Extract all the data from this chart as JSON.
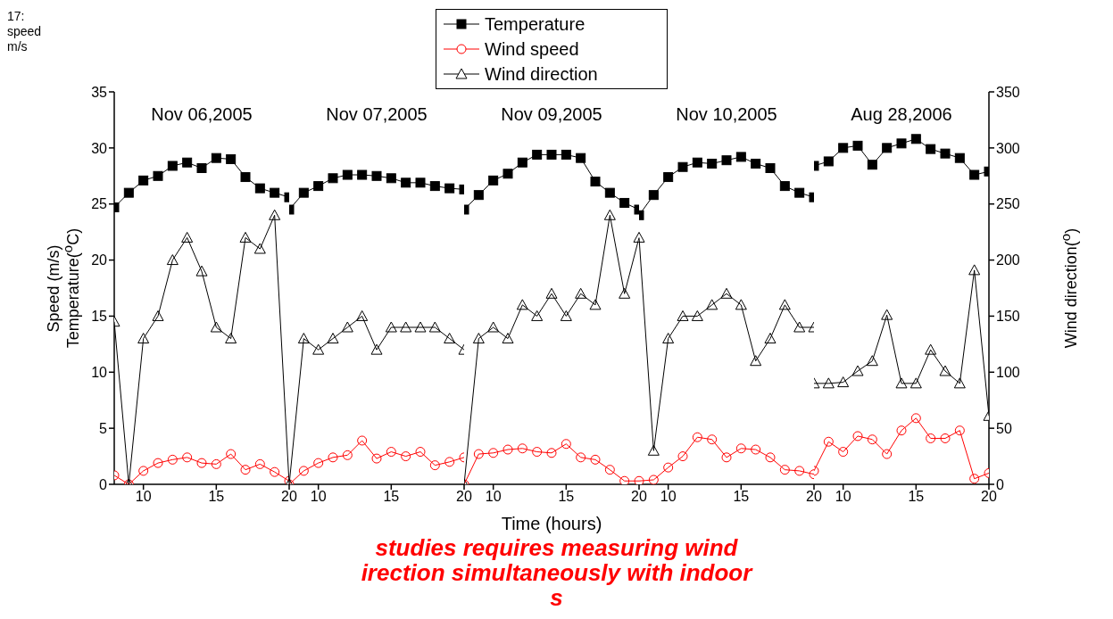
{
  "chart_data": [
    {
      "type": "other",
      "annotations": [
        "17:",
        "speed",
        "m/s"
      ]
    },
    {
      "type": "line",
      "title": "Nov 06,2005",
      "ylabel": "Temperature($^{o}$C)",
      "annotations": [
        "Speed (m/s)"
      ],
      "x": [
        8,
        9,
        10,
        11,
        12,
        13,
        14,
        15,
        16,
        17,
        18,
        19,
        20
      ],
      "xlim": [
        8,
        20
      ],
      "xticks": [
        10,
        15,
        20
      ],
      "ylim": [
        0,
        35
      ],
      "yticks": [
        0,
        5,
        10,
        15,
        20,
        25,
        30,
        35
      ],
      "y2lim": [
        0,
        350
      ],
      "series": [
        {
          "color": "#000000",
          "marker": "square",
          "values": [
            24.7,
            26.0,
            27.1,
            27.5,
            28.4,
            28.7,
            28.2,
            29.1,
            29.0,
            27.4,
            26.4,
            26.0,
            25.6
          ]
        },
        {
          "color": "#ff0000",
          "marker": "circle",
          "values": [
            0.8,
            0,
            1.2,
            1.9,
            2.2,
            2.4,
            1.9,
            1.8,
            2.7,
            1.3,
            1.8,
            1.1,
            0.3
          ]
        },
        {
          "color": "#000000",
          "marker": "triangle",
          "axis": "y2",
          "values": [
            145,
            0,
            130,
            150,
            200,
            220,
            190,
            140,
            130,
            220,
            210,
            240,
            0
          ]
        }
      ]
    },
    {
      "type": "line",
      "title": "Nov 07,2005",
      "x": [
        8,
        9,
        10,
        11,
        12,
        13,
        14,
        15,
        16,
        17,
        18,
        19,
        20
      ],
      "xlim": [
        8,
        20
      ],
      "xticks": [
        10,
        15,
        20
      ],
      "ylim": [
        0,
        35
      ],
      "y2lim": [
        0,
        350
      ],
      "tick_labels": "x",
      "series": [
        {
          "color": "#000000",
          "marker": "square",
          "values": [
            24.5,
            26.0,
            26.6,
            27.3,
            27.6,
            27.6,
            27.5,
            27.3,
            26.9,
            26.9,
            26.6,
            26.4,
            26.3
          ]
        },
        {
          "color": "#ff0000",
          "marker": "circle",
          "values": [
            0,
            1.2,
            1.9,
            2.4,
            2.6,
            3.9,
            2.3,
            2.9,
            2.5,
            2.9,
            1.7,
            2.0,
            2.4
          ]
        },
        {
          "color": "#000000",
          "marker": "triangle",
          "axis": "y2",
          "values": [
            0,
            130,
            120,
            130,
            140,
            150,
            120,
            140,
            140,
            140,
            140,
            130,
            120
          ]
        }
      ]
    },
    {
      "type": "line",
      "title": "Nov 09,2005",
      "xlabel": "Time (hours)",
      "legend": "top",
      "x": [
        8,
        9,
        10,
        11,
        12,
        13,
        14,
        15,
        16,
        17,
        18,
        19,
        20
      ],
      "xlim": [
        8,
        20
      ],
      "xticks": [
        10,
        15,
        20
      ],
      "ylim": [
        0,
        35
      ],
      "y2lim": [
        0,
        350
      ],
      "tick_labels": "x",
      "series": [
        {
          "name": "Temperature",
          "color": "#000000",
          "marker": "square",
          "values": [
            24.5,
            25.8,
            27.1,
            27.7,
            28.7,
            29.4,
            29.4,
            29.4,
            29.1,
            27.0,
            26.0,
            25.1,
            24.5
          ]
        },
        {
          "name": "Wind speed",
          "color": "#ff0000",
          "marker": "circle",
          "values": [
            0,
            2.7,
            2.8,
            3.1,
            3.2,
            2.9,
            2.8,
            3.6,
            2.4,
            2.2,
            1.3,
            0.3,
            0.3
          ]
        },
        {
          "name": "Wind direction",
          "color": "#000000",
          "marker": "triangle",
          "axis": "y2",
          "values": [
            0,
            130,
            140,
            130,
            160,
            150,
            170,
            150,
            170,
            160,
            240,
            170,
            220
          ]
        }
      ]
    },
    {
      "type": "line",
      "title": "Nov 10,2005",
      "x": [
        8,
        9,
        10,
        11,
        12,
        13,
        14,
        15,
        16,
        17,
        18,
        19,
        20
      ],
      "xlim": [
        8,
        20
      ],
      "xticks": [
        10,
        15,
        20
      ],
      "ylim": [
        0,
        35
      ],
      "y2lim": [
        0,
        350
      ],
      "tick_labels": "x",
      "series": [
        {
          "color": "#000000",
          "marker": "square",
          "values": [
            24.0,
            25.8,
            27.4,
            28.3,
            28.7,
            28.6,
            28.9,
            29.2,
            28.6,
            28.2,
            26.6,
            26.0,
            25.6
          ]
        },
        {
          "color": "#ff0000",
          "marker": "circle",
          "values": [
            0.3,
            0.4,
            1.5,
            2.5,
            4.2,
            4.0,
            2.4,
            3.2,
            3.1,
            2.4,
            1.3,
            1.2,
            0.9
          ]
        },
        {
          "color": "#000000",
          "marker": "triangle",
          "axis": "y2",
          "values": [
            220,
            30,
            130,
            150,
            150,
            160,
            170,
            160,
            110,
            130,
            160,
            140,
            140
          ]
        }
      ]
    },
    {
      "type": "line",
      "title": "Aug 28,2006",
      "y2label": "Wind direction($^{o}$)",
      "x": [
        8,
        9,
        10,
        11,
        12,
        13,
        14,
        15,
        16,
        17,
        18,
        19,
        20
      ],
      "xlim": [
        8,
        20
      ],
      "xticks": [
        10,
        15,
        20
      ],
      "ylim": [
        0,
        35
      ],
      "y2lim": [
        0,
        350
      ],
      "y2ticks": [
        0,
        50,
        100,
        150,
        200,
        250,
        300,
        350
      ],
      "series": [
        {
          "color": "#000000",
          "marker": "square",
          "values": [
            28.4,
            28.8,
            30.0,
            30.2,
            28.5,
            30.0,
            30.4,
            30.8,
            29.9,
            29.5,
            29.1,
            27.6,
            27.9
          ]
        },
        {
          "color": "#ff0000",
          "marker": "circle",
          "values": [
            1.2,
            3.8,
            2.9,
            4.3,
            4.0,
            2.7,
            4.8,
            5.9,
            4.1,
            4.1,
            4.8,
            0.5,
            1.0
          ]
        },
        {
          "color": "#000000",
          "marker": "triangle",
          "axis": "y2",
          "values": [
            90,
            90,
            91,
            101,
            110,
            151,
            90,
            90,
            120,
            101,
            90,
            191,
            61
          ]
        }
      ]
    },
    {
      "type": "other",
      "annotations": [
        "studies requires measuring wind",
        "irection simultaneously with indoor",
        "s"
      ]
    }
  ]
}
